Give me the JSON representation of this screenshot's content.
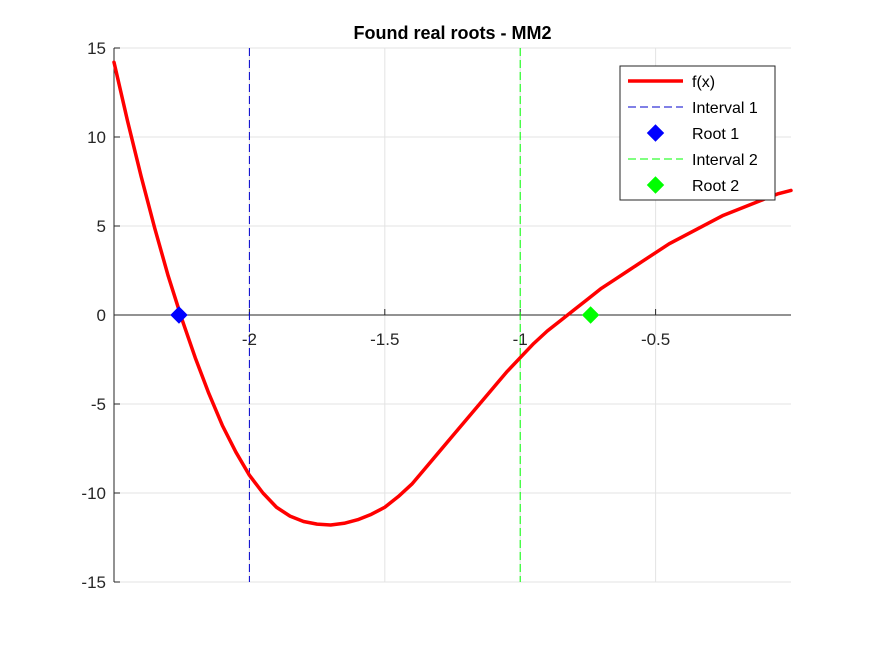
{
  "chart_data": {
    "type": "line",
    "title": "Found real roots - MM2",
    "xlabel": "",
    "ylabel": "",
    "xlim": [
      -2.5,
      0
    ],
    "ylim": [
      -15,
      15
    ],
    "grid": true,
    "x_axis_location": "origin",
    "xticks": [
      -2,
      -1.5,
      -1,
      -0.5
    ],
    "xtick_labels": [
      "-2",
      "-1.5",
      "-1",
      "-0.5"
    ],
    "yticks": [
      15,
      10,
      5,
      0,
      -5,
      -10,
      -15
    ],
    "ytick_labels": [
      "15",
      "10",
      "5",
      "0",
      "-5",
      "-10",
      "-15"
    ],
    "legend_position": "top-right",
    "series": [
      {
        "name": "f(x)",
        "kind": "line",
        "color": "#ff0000",
        "x": [
          -2.5,
          -2.45,
          -2.4,
          -2.35,
          -2.3,
          -2.25,
          -2.2,
          -2.15,
          -2.1,
          -2.05,
          -2.0,
          -1.95,
          -1.9,
          -1.85,
          -1.8,
          -1.75,
          -1.7,
          -1.65,
          -1.6,
          -1.55,
          -1.5,
          -1.45,
          -1.4,
          -1.35,
          -1.3,
          -1.25,
          -1.2,
          -1.15,
          -1.1,
          -1.05,
          -1.0,
          -0.95,
          -0.9,
          -0.85,
          -0.8,
          -0.75,
          -0.7,
          -0.65,
          -0.6,
          -0.55,
          -0.5,
          -0.45,
          -0.4,
          -0.35,
          -0.3,
          -0.25,
          -0.2,
          -0.15,
          -0.1,
          -0.05,
          0.0
        ],
        "y": [
          14.2,
          10.9,
          7.8,
          4.9,
          2.2,
          -0.2,
          -2.4,
          -4.4,
          -6.2,
          -7.7,
          -9.0,
          -10.0,
          -10.8,
          -11.3,
          -11.6,
          -11.75,
          -11.8,
          -11.7,
          -11.5,
          -11.2,
          -10.8,
          -10.2,
          -9.5,
          -8.6,
          -7.7,
          -6.8,
          -5.9,
          -5.0,
          -4.1,
          -3.2,
          -2.4,
          -1.6,
          -0.9,
          -0.3,
          0.3,
          0.9,
          1.5,
          2.0,
          2.5,
          3.0,
          3.5,
          4.0,
          4.4,
          4.8,
          5.2,
          5.6,
          5.9,
          6.2,
          6.5,
          6.8,
          7.0
        ]
      },
      {
        "name": "Interval 1",
        "kind": "vline",
        "x": -2,
        "color": "#0000cc"
      },
      {
        "name": "Root 1",
        "kind": "marker",
        "x": -2.26,
        "y": 0,
        "color": "#0000ff"
      },
      {
        "name": "Interval 2",
        "kind": "vline",
        "x": -1,
        "color": "#00ff00"
      },
      {
        "name": "Root 2",
        "kind": "marker",
        "x": -0.74,
        "y": 0,
        "color": "#00ff00"
      }
    ]
  }
}
